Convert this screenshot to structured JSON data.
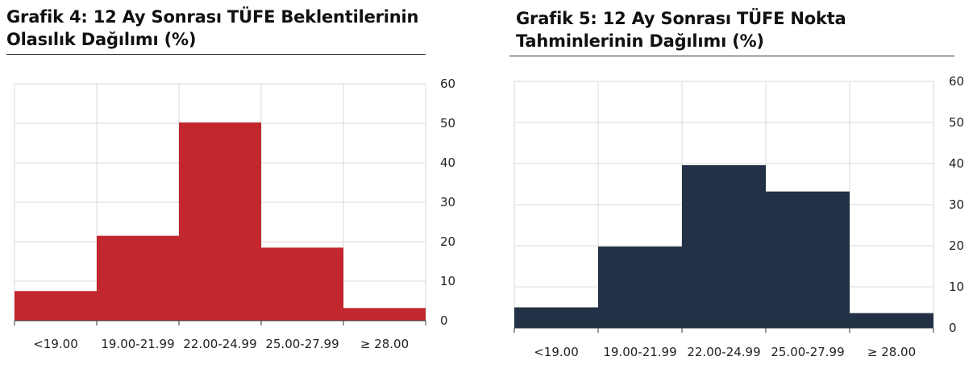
{
  "charts": [
    {
      "title_line1": "Grafik 4: 12 Ay Sonrası TÜFE Beklentilerinin",
      "title_line2": "Olasılık Dağılımı (%)"
    },
    {
      "title_line1": "Grafik 5: 12 Ay Sonrası TÜFE Nokta",
      "title_line2": "Tahminlerinin Dağılımı (%)"
    }
  ],
  "chart_data": [
    {
      "type": "bar",
      "categories": [
        "<19.00",
        "19.00-21.99",
        "22.00-24.99",
        "25.00-27.99",
        "≥ 28.00"
      ],
      "values": [
        7.5,
        21.5,
        50.2,
        18.5,
        3.2
      ],
      "title": "Grafik 4: 12 Ay Sonrası TÜFE Beklentilerinin Olasılık Dağılımı (%)",
      "xlabel": "",
      "ylabel": "",
      "ylim": [
        0,
        60
      ],
      "yticks": [
        0,
        10,
        20,
        30,
        40,
        50,
        60
      ],
      "y_axis_position": "right",
      "grid": true,
      "color": "#C1272D"
    },
    {
      "type": "bar",
      "categories": [
        "<19.00",
        "19.00-21.99",
        "22.00-24.99",
        "25.00-27.99",
        "≥ 28.00"
      ],
      "values": [
        5.0,
        19.8,
        39.6,
        33.2,
        3.6
      ],
      "title": "Grafik 5: 12 Ay Sonrası TÜFE Nokta Tahminlerinin Dağılımı (%)",
      "xlabel": "",
      "ylabel": "",
      "ylim": [
        0,
        60
      ],
      "yticks": [
        0,
        10,
        20,
        30,
        40,
        50,
        60
      ],
      "y_axis_position": "right",
      "grid": true,
      "color": "#223145"
    }
  ]
}
